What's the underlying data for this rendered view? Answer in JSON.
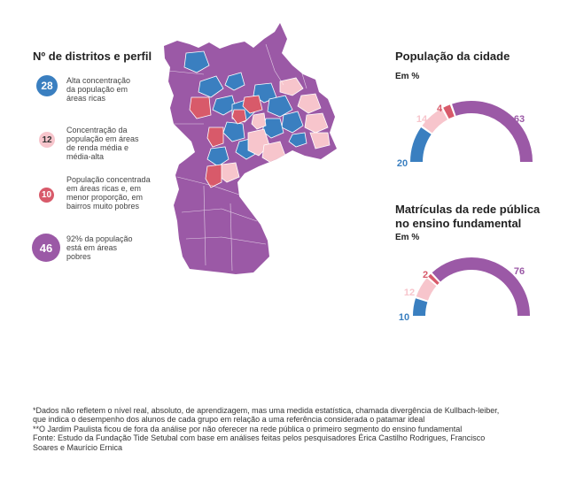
{
  "legend": {
    "title": "Nº de distritos e perfil",
    "items": [
      {
        "count": "28",
        "color": "#3a7fc0",
        "text_color": "#ffffff",
        "text": [
          "Alta concentração",
          "da população em",
          "áreas ricas"
        ]
      },
      {
        "count": "12",
        "color": "#f7c5cc",
        "text_color": "#333333",
        "text": [
          "Concentração da",
          "população em áreas",
          "de renda média e",
          "média-alta"
        ]
      },
      {
        "count": "10",
        "color": "#d85a6a",
        "text_color": "#ffffff",
        "text": [
          "População concentrada",
          "em áreas ricas e, em",
          "menor proporção, em",
          "bairros muito pobres"
        ]
      },
      {
        "count": "46",
        "color": "#9b59a6",
        "text_color": "#ffffff",
        "text": [
          "92% da população",
          "está em áreas",
          "pobres"
        ]
      }
    ]
  },
  "chart_data": [
    {
      "type": "pie",
      "title": "População da cidade",
      "subtitle": "Em %",
      "categories": [
        "Alta concentração da população em áreas ricas",
        "Renda média e média-alta",
        "Áreas ricas e bairros muito pobres",
        "Áreas pobres"
      ],
      "values": [
        20,
        14,
        4,
        63
      ],
      "labels": [
        "20",
        "14",
        "4",
        "63"
      ],
      "colors": [
        "#3a7fc0",
        "#f7c5cc",
        "#d85a6a",
        "#9b59a6"
      ]
    },
    {
      "type": "pie",
      "title": "Matrículas da rede pública no ensino fundamental",
      "subtitle": "Em %",
      "categories": [
        "Alta concentração da população em áreas ricas",
        "Renda média e média-alta",
        "Áreas ricas e bairros muito pobres",
        "Áreas pobres"
      ],
      "values": [
        10,
        12,
        2,
        76
      ],
      "labels": [
        "10",
        "12",
        "2",
        "76"
      ],
      "colors": [
        "#3a7fc0",
        "#f7c5cc",
        "#d85a6a",
        "#9b59a6"
      ]
    }
  ],
  "chart1_title": "População da cidade",
  "chart2_title_line1": "Matrículas da rede pública",
  "chart2_title_line2": "no ensino fundamental",
  "subtitle": "Em %",
  "colors": {
    "blue": "#3a7fc0",
    "pink": "#f7c5cc",
    "red": "#d85a6a",
    "purple": "#9b59a6"
  },
  "notes": [
    "*Dados não refletem o nível real, absoluto, de aprendizagem, mas uma medida estatística, chamada divergência de Kullbach-leiber,",
    "que indica o desempenho dos alunos de cada grupo em relação a uma referência considerada o patamar ideal",
    "**O Jardim Paulista ficou de fora da análise por não oferecer na rede pública o primeiro segmento do ensino fundamental",
    "Fonte: Estudo da Fundação Tide Setubal com base em análises feitas pelos pesquisadores Érica Castilho Rodrigues, Francisco",
    "Soares e Maurício Ernica"
  ]
}
